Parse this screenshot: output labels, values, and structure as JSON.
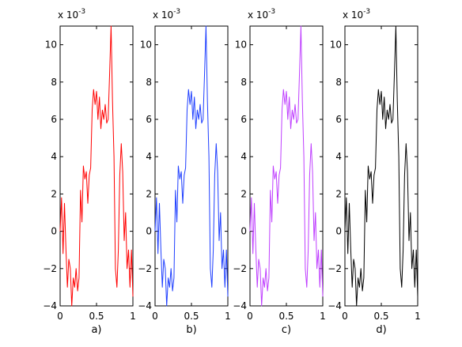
{
  "chart_data": [
    {
      "type": "line",
      "caption": "a)",
      "scale_label": "x 10",
      "scale_exp": "-3",
      "color": "#ff0000",
      "xlim": [
        0,
        1
      ],
      "ylim": [
        -4,
        11
      ],
      "xticks": [
        "0",
        "0.5",
        "1"
      ],
      "yticks": [
        "−4",
        "−2",
        "0",
        "2",
        "4",
        "6",
        "8",
        "10"
      ],
      "series": [
        {
          "x": [
            0.0,
            0.02,
            0.04,
            0.06,
            0.08,
            0.1,
            0.12,
            0.14,
            0.16,
            0.18,
            0.2,
            0.22,
            0.24,
            0.26,
            0.28,
            0.3,
            0.32,
            0.34,
            0.36,
            0.38,
            0.4,
            0.42,
            0.44,
            0.46,
            0.48,
            0.5,
            0.52,
            0.54,
            0.56,
            0.58,
            0.6,
            0.62,
            0.64,
            0.66,
            0.68,
            0.7,
            0.72,
            0.74,
            0.76,
            0.78,
            0.8,
            0.82,
            0.84,
            0.86,
            0.88,
            0.9,
            0.92,
            0.94,
            0.96,
            0.98,
            1.0
          ],
          "y": [
            0.0,
            1.8,
            -1.2,
            1.5,
            -1.0,
            -3.0,
            -1.5,
            -2.0,
            -4.0,
            -2.5,
            -3.0,
            -2.0,
            -3.2,
            -2.5,
            2.2,
            0.5,
            3.5,
            2.8,
            3.2,
            1.5,
            3.0,
            3.4,
            6.5,
            7.6,
            6.8,
            7.5,
            6.0,
            7.2,
            5.5,
            6.5,
            6.0,
            6.8,
            5.8,
            6.0,
            8.5,
            11.0,
            7.0,
            4.0,
            -2.0,
            -3.0,
            -1.0,
            3.0,
            4.7,
            3.2,
            -0.5,
            1.0,
            -2.0,
            -1.0,
            -3.0,
            -1.0,
            -3.5
          ]
        }
      ]
    },
    {
      "type": "line",
      "caption": "b)",
      "scale_label": "x 10",
      "scale_exp": "-3",
      "color": "#1f3fff",
      "xlim": [
        0,
        1
      ],
      "ylim": [
        -4,
        11
      ],
      "xticks": [
        "0",
        "0.5",
        "1"
      ],
      "yticks": [
        "−4",
        "−2",
        "0",
        "2",
        "4",
        "6",
        "8",
        "10"
      ],
      "series": [
        {
          "x": [
            0.0,
            0.02,
            0.04,
            0.06,
            0.08,
            0.1,
            0.12,
            0.14,
            0.16,
            0.18,
            0.2,
            0.22,
            0.24,
            0.26,
            0.28,
            0.3,
            0.32,
            0.34,
            0.36,
            0.38,
            0.4,
            0.42,
            0.44,
            0.46,
            0.48,
            0.5,
            0.52,
            0.54,
            0.56,
            0.58,
            0.6,
            0.62,
            0.64,
            0.66,
            0.68,
            0.7,
            0.72,
            0.74,
            0.76,
            0.78,
            0.8,
            0.82,
            0.84,
            0.86,
            0.88,
            0.9,
            0.92,
            0.94,
            0.96,
            0.98,
            1.0
          ],
          "y": [
            0.0,
            1.8,
            -1.2,
            1.5,
            -1.0,
            -3.0,
            -1.5,
            -2.0,
            -4.0,
            -2.5,
            -3.0,
            -2.0,
            -3.2,
            -2.5,
            2.2,
            0.5,
            3.5,
            2.8,
            3.2,
            1.5,
            3.0,
            3.4,
            6.5,
            7.6,
            6.8,
            7.5,
            6.0,
            7.2,
            5.5,
            6.5,
            6.0,
            6.8,
            5.8,
            6.0,
            8.5,
            11.0,
            7.0,
            4.0,
            -2.0,
            -3.0,
            -1.0,
            3.0,
            4.7,
            3.2,
            -0.5,
            1.0,
            -2.0,
            -1.0,
            -3.0,
            -1.0,
            -3.5
          ]
        }
      ]
    },
    {
      "type": "line",
      "caption": "c)",
      "scale_label": "x 10",
      "scale_exp": "-3",
      "color": "#bf3fff",
      "xlim": [
        0,
        1
      ],
      "ylim": [
        -4,
        11
      ],
      "xticks": [
        "0",
        "0.5",
        "1"
      ],
      "yticks": [
        "−4",
        "−2",
        "0",
        "2",
        "4",
        "6",
        "8",
        "10"
      ],
      "series": [
        {
          "x": [
            0.0,
            0.02,
            0.04,
            0.06,
            0.08,
            0.1,
            0.12,
            0.14,
            0.16,
            0.18,
            0.2,
            0.22,
            0.24,
            0.26,
            0.28,
            0.3,
            0.32,
            0.34,
            0.36,
            0.38,
            0.4,
            0.42,
            0.44,
            0.46,
            0.48,
            0.5,
            0.52,
            0.54,
            0.56,
            0.58,
            0.6,
            0.62,
            0.64,
            0.66,
            0.68,
            0.7,
            0.72,
            0.74,
            0.76,
            0.78,
            0.8,
            0.82,
            0.84,
            0.86,
            0.88,
            0.9,
            0.92,
            0.94,
            0.96,
            0.98,
            1.0
          ],
          "y": [
            0.0,
            1.8,
            -1.2,
            1.5,
            -1.0,
            -3.0,
            -1.5,
            -2.0,
            -4.0,
            -2.5,
            -3.0,
            -2.0,
            -3.2,
            -2.5,
            2.2,
            0.5,
            3.5,
            2.8,
            3.2,
            1.5,
            3.0,
            3.4,
            6.5,
            7.6,
            6.8,
            7.5,
            6.0,
            7.2,
            5.5,
            6.5,
            6.0,
            6.8,
            5.8,
            6.0,
            8.5,
            11.0,
            7.0,
            4.0,
            -2.0,
            -3.0,
            -1.0,
            3.0,
            4.7,
            3.2,
            -0.5,
            1.0,
            -2.0,
            -1.0,
            -3.0,
            -1.0,
            -3.5
          ]
        }
      ]
    },
    {
      "type": "line",
      "caption": "d)",
      "scale_label": "x 10",
      "scale_exp": "-3",
      "color": "#000000",
      "xlim": [
        0,
        1
      ],
      "ylim": [
        -4,
        11
      ],
      "xticks": [
        "0",
        "0.5",
        "1"
      ],
      "yticks": [
        "−4",
        "−2",
        "0",
        "2",
        "4",
        "6",
        "8",
        "10"
      ],
      "series": [
        {
          "x": [
            0.0,
            0.02,
            0.04,
            0.06,
            0.08,
            0.1,
            0.12,
            0.14,
            0.16,
            0.18,
            0.2,
            0.22,
            0.24,
            0.26,
            0.28,
            0.3,
            0.32,
            0.34,
            0.36,
            0.38,
            0.4,
            0.42,
            0.44,
            0.46,
            0.48,
            0.5,
            0.52,
            0.54,
            0.56,
            0.58,
            0.6,
            0.62,
            0.64,
            0.66,
            0.68,
            0.7,
            0.72,
            0.74,
            0.76,
            0.78,
            0.8,
            0.82,
            0.84,
            0.86,
            0.88,
            0.9,
            0.92,
            0.94,
            0.96,
            0.98,
            1.0
          ],
          "y": [
            0.0,
            1.8,
            -1.2,
            1.5,
            -1.0,
            -3.0,
            -1.5,
            -2.0,
            -4.0,
            -2.5,
            -3.0,
            -2.0,
            -3.2,
            -2.5,
            2.2,
            0.5,
            3.5,
            2.8,
            3.2,
            1.5,
            3.0,
            3.4,
            6.5,
            7.6,
            6.8,
            7.5,
            6.0,
            7.2,
            5.5,
            6.5,
            6.0,
            6.8,
            5.8,
            6.0,
            8.5,
            11.0,
            7.0,
            4.0,
            -2.0,
            -3.0,
            -1.0,
            3.0,
            4.7,
            3.2,
            -0.5,
            1.0,
            -2.0,
            -1.0,
            -3.0,
            -1.0,
            -3.5
          ]
        }
      ]
    }
  ]
}
